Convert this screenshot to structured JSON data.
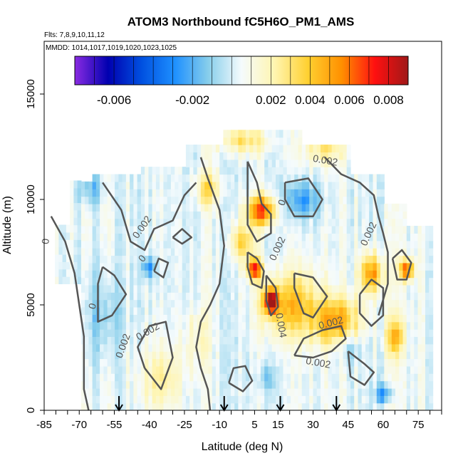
{
  "chart_data": {
    "type": "heatmap",
    "title": "ATOM3 Northbound fC5H6O_PM1_AMS",
    "notes": {
      "flights": "Flts: 7,8,9,10,11,12",
      "dates": "MMDD: 1014,1017,1019,1020,1023,1025"
    },
    "xlabel": "Latitude (deg N)",
    "ylabel": "Altitude (m)",
    "xlim": [
      -85,
      85
    ],
    "ylim": [
      0,
      17500
    ],
    "x_ticks": [
      -85,
      -70,
      -55,
      -40,
      -25,
      -10,
      5,
      15,
      30,
      45,
      60,
      75
    ],
    "x_tick_labels": [
      "-85",
      "-70",
      "-55",
      "-40",
      "-25",
      "-10",
      "5",
      "15",
      "30",
      "45",
      "60",
      "75"
    ],
    "y_ticks": [
      0,
      5000,
      10000,
      15000
    ],
    "y_tick_labels": [
      "0",
      "5000",
      "10000",
      "15000"
    ],
    "colorbar": {
      "range": [
        -0.008,
        0.009
      ],
      "ticks": [
        -0.006,
        -0.002,
        0.002,
        0.004,
        0.006,
        0.008
      ],
      "tick_labels": [
        "-0.006",
        "-0.002",
        "0.002",
        "0.004",
        "0.006",
        "0.008"
      ],
      "colors": [
        "#8a2be2",
        "#0000b0",
        "#0050e0",
        "#1e90ff",
        "#87ceeb",
        "#f5fbfd",
        "#fff5b0",
        "#ffd030",
        "#ff9000",
        "#ff1010",
        "#a01818"
      ]
    },
    "contour_labels": [
      "0.002",
      "0.002",
      "0.002",
      "0.002",
      "0.002",
      "0.002",
      "0.002",
      "0.004",
      "0.002",
      "0",
      "0",
      "0",
      "0"
    ],
    "arrow_markers_lat": [
      -53,
      -8,
      16,
      40
    ],
    "colors": {
      "contour": "#555555",
      "frame": "#000000"
    }
  }
}
